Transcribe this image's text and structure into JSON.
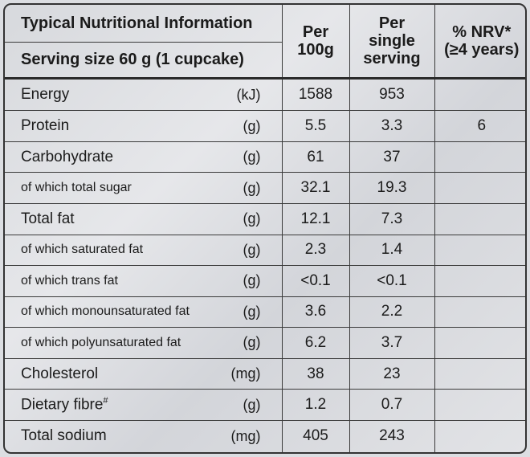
{
  "header": {
    "title": "Typical Nutritional Information",
    "serving": "Serving size 60 g (1 cupcake)",
    "col_per100": "Per\n100g",
    "col_per100_l1": "Per",
    "col_per100_l2": "100g",
    "col_single_l1": "Per",
    "col_single_l2": "single",
    "col_single_l3": "serving",
    "col_nrv_l1": "% NRV*",
    "col_nrv_l2": "(≥4 years)"
  },
  "rows": [
    {
      "name": "Energy",
      "unit": "(kJ)",
      "per100": "1588",
      "serving": "953",
      "nrv": ""
    },
    {
      "name": "Protein",
      "unit": "(g)",
      "per100": "5.5",
      "serving": "3.3",
      "nrv": "6"
    },
    {
      "name": "Carbohydrate",
      "unit": "(g)",
      "per100": "61",
      "serving": "37",
      "nrv": ""
    },
    {
      "name": "of which total sugar",
      "unit": "(g)",
      "per100": "32.1",
      "serving": "19.3",
      "nrv": ""
    },
    {
      "name": "Total fat",
      "unit": "(g)",
      "per100": "12.1",
      "serving": "7.3",
      "nrv": ""
    },
    {
      "name": "of which saturated fat",
      "unit": "(g)",
      "per100": "2.3",
      "serving": "1.4",
      "nrv": ""
    },
    {
      "name": "of which trans fat",
      "unit": "(g)",
      "per100": "<0.1",
      "serving": "<0.1",
      "nrv": ""
    },
    {
      "name": "of which monounsaturated fat",
      "unit": "(g)",
      "per100": "3.6",
      "serving": "2.2",
      "nrv": ""
    },
    {
      "name": "of which polyunsaturated fat",
      "unit": "(g)",
      "per100": "6.2",
      "serving": "3.7",
      "nrv": ""
    },
    {
      "name": "Cholesterol",
      "unit": "(mg)",
      "per100": "38",
      "serving": "23",
      "nrv": ""
    },
    {
      "name": "Dietary fibre",
      "name_sup": "#",
      "unit": "(g)",
      "per100": "1.2",
      "serving": "0.7",
      "nrv": ""
    },
    {
      "name": "Total sodium",
      "unit": "(mg)",
      "per100": "405",
      "serving": "243",
      "nrv": ""
    }
  ]
}
